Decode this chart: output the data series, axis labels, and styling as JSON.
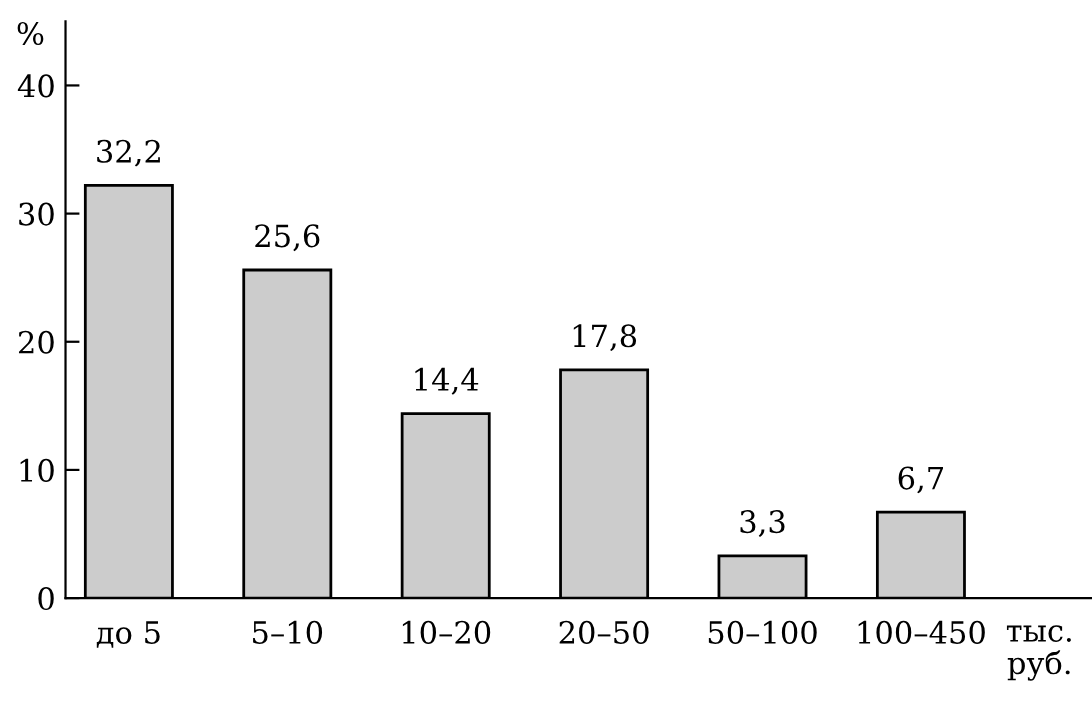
{
  "chart_data": {
    "type": "bar",
    "ylabel": "%",
    "xlabel": "тыс. руб.",
    "categories": [
      "до 5",
      "5–10",
      "10–20",
      "20–50",
      "50–100",
      "100–450"
    ],
    "values": [
      32.2,
      25.6,
      14.4,
      17.8,
      3.3,
      6.7
    ],
    "value_labels": [
      "32,2",
      "25,6",
      "14,4",
      "17,8",
      "3,3",
      "6,7"
    ],
    "color": "#cccccc",
    "ylim": [
      0,
      45
    ],
    "yticks": [
      0,
      10,
      20,
      30,
      40
    ],
    "grid": false,
    "legend": false
  }
}
